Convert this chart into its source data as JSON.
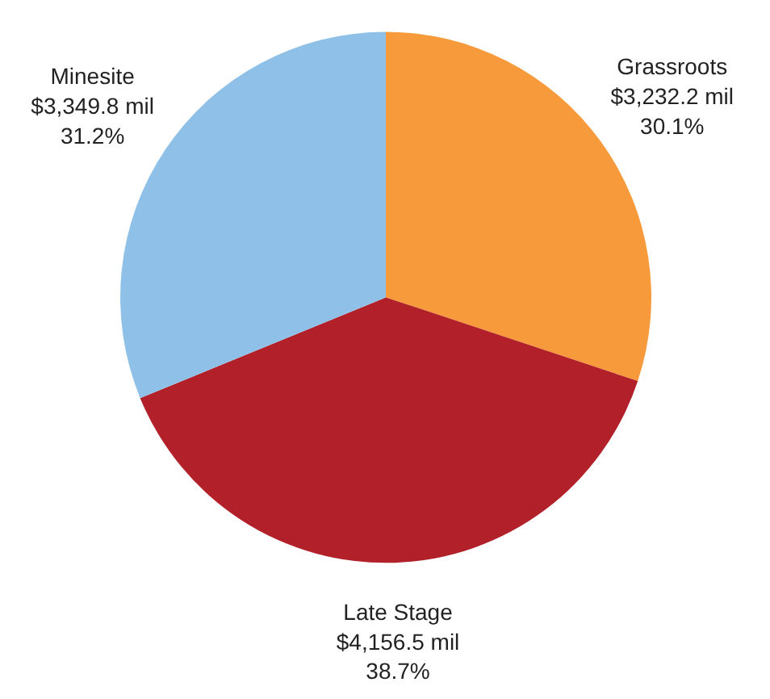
{
  "chart_data": {
    "type": "pie",
    "categories": [
      "Grassroots",
      "Late Stage",
      "Minesite"
    ],
    "values": [
      3232.2,
      4156.5,
      3349.8
    ],
    "value_labels": [
      "$3,232.2 mil\n30.1%",
      "$4,156.5 mil\n38.7%",
      "$3,349.8 mil\n31.2%"
    ],
    "colors": [
      "#f79a3b",
      "#b2212a",
      "#8fc1e8"
    ]
  }
}
